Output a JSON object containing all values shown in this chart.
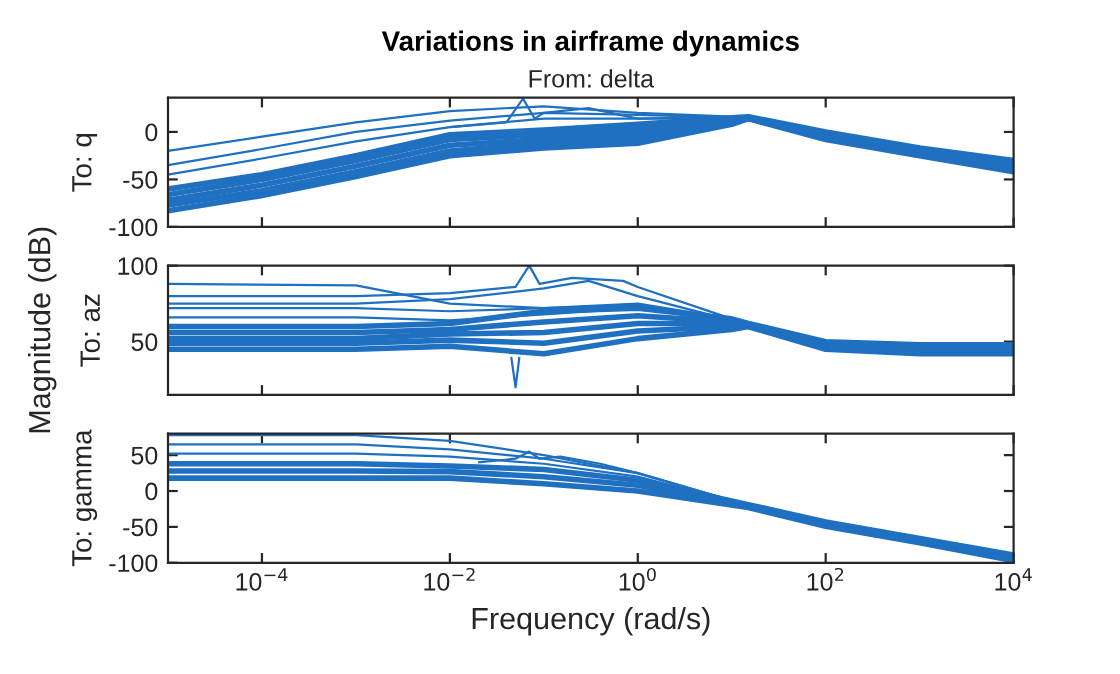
{
  "chart_data": [
    {
      "type": "line",
      "title": "Variations in airframe dynamics",
      "subtitle": "From: delta",
      "ylabel": "To: q",
      "log": "x",
      "grid": false,
      "tick_labels": "y",
      "xlim": [
        1e-05,
        10000
      ],
      "xticks": [
        {
          "value": 0.0001,
          "label": null
        },
        {
          "value": 0.01,
          "label": null
        },
        {
          "value": 1,
          "label": null
        },
        {
          "value": 100,
          "label": null
        },
        {
          "value": 10000,
          "label": null
        }
      ],
      "ylim": [
        -100,
        36
      ],
      "yticks": [
        -100,
        -50,
        0
      ],
      "series": [
        {
          "color": "#1f70c1",
          "x": [
            1e-05,
            0.0001,
            0.001,
            0.01,
            0.1,
            1,
            10,
            15,
            100,
            1000,
            10000
          ],
          "values": [
            -83,
            -67,
            -47,
            -25,
            -17,
            -12,
            8,
            14,
            -8,
            -25,
            -42
          ]
        },
        {
          "color": "#1f70c1",
          "x": [
            1e-05,
            0.0001,
            0.001,
            0.01,
            0.1,
            1,
            10,
            15,
            100,
            1000,
            10000
          ],
          "values": [
            -77,
            -62,
            -42,
            -20,
            -12,
            -7,
            10,
            14,
            -6,
            -23,
            -39
          ]
        },
        {
          "color": "#1f70c1",
          "x": [
            1e-05,
            0.0001,
            0.001,
            0.01,
            0.1,
            1,
            10,
            15,
            100,
            1000,
            10000
          ],
          "values": [
            -72,
            -56,
            -36,
            -14,
            -8,
            -2,
            12,
            15,
            -4,
            -21,
            -36
          ]
        },
        {
          "color": "#1f70c1",
          "x": [
            1e-05,
            0.0001,
            0.001,
            0.01,
            0.1,
            1,
            10,
            15,
            100,
            1000,
            10000
          ],
          "values": [
            -66,
            -50,
            -30,
            -8,
            -3,
            3,
            13,
            15,
            -2,
            -19,
            -33
          ]
        },
        {
          "color": "#1f70c1",
          "x": [
            1e-05,
            0.0001,
            0.001,
            0.01,
            0.1,
            1,
            10,
            15,
            100,
            1000,
            10000
          ],
          "values": [
            -60,
            -45,
            -25,
            -3,
            2,
            8,
            15,
            16,
            0,
            -17,
            -30
          ]
        },
        {
          "color": "#1f70c1",
          "x": [
            1e-05,
            0.0001,
            0.001,
            0.01,
            0.1,
            1,
            10,
            15
          ],
          "values": [
            -20,
            -5,
            10,
            22,
            27,
            20,
            16,
            15
          ]
        },
        {
          "color": "#1f70c1",
          "x": [
            1e-05,
            0.0001,
            0.001,
            0.01,
            0.1,
            1,
            10,
            15
          ],
          "values": [
            -35,
            -18,
            0,
            12,
            20,
            18,
            15,
            15
          ]
        },
        {
          "color": "#1f70c1",
          "x": [
            1e-05,
            0.0001,
            0.001,
            0.01,
            0.1,
            1,
            10,
            15
          ],
          "values": [
            -45,
            -28,
            -10,
            5,
            14,
            14,
            15,
            15
          ]
        },
        {
          "color": "#1f70c1",
          "x": [
            0.01,
            0.04,
            0.06,
            0.08,
            0.1,
            0.3,
            1,
            15
          ],
          "values": [
            5,
            10,
            35,
            14,
            20,
            25,
            14,
            15
          ]
        }
      ]
    },
    {
      "type": "line",
      "ylabel": "To: az",
      "annotations": [
        "Magnitude (dB)"
      ],
      "log": "x",
      "grid": false,
      "tick_labels": "y",
      "xlim": [
        1e-05,
        10000
      ],
      "xticks": [
        {
          "value": 0.0001,
          "label": null
        },
        {
          "value": 0.01,
          "label": null
        },
        {
          "value": 1,
          "label": null
        },
        {
          "value": 100,
          "label": null
        },
        {
          "value": 10000,
          "label": null
        }
      ],
      "ylim": [
        15,
        100
      ],
      "yticks": [
        50,
        100
      ],
      "series": [
        {
          "color": "#1f70c1",
          "x": [
            1e-05,
            0.001,
            0.01,
            0.1,
            1,
            10,
            15,
            100,
            1000,
            10000
          ],
          "values": [
            45,
            45,
            47,
            42,
            52,
            58,
            60,
            45,
            42,
            42
          ]
        },
        {
          "color": "#1f70c1",
          "x": [
            1e-05,
            0.001,
            0.01,
            0.1,
            1,
            10,
            15,
            100,
            1000,
            10000
          ],
          "values": [
            49,
            49,
            51,
            49,
            57,
            60,
            60,
            46,
            44,
            44
          ]
        },
        {
          "color": "#1f70c1",
          "x": [
            1e-05,
            0.001,
            0.01,
            0.1,
            1,
            10,
            15,
            100,
            1000,
            10000
          ],
          "values": [
            52,
            52,
            55,
            56,
            62,
            62,
            61,
            48,
            45,
            45
          ]
        },
        {
          "color": "#1f70c1",
          "x": [
            1e-05,
            0.001,
            0.01,
            0.1,
            1,
            10,
            15,
            100,
            1000,
            10000
          ],
          "values": [
            56,
            56,
            58,
            63,
            67,
            63,
            61,
            49,
            46,
            46
          ]
        },
        {
          "color": "#1f70c1",
          "x": [
            1e-05,
            0.001,
            0.01,
            0.1,
            1,
            10,
            15,
            100,
            1000,
            10000
          ],
          "values": [
            60,
            60,
            62,
            70,
            72,
            65,
            62,
            50,
            48,
            48
          ]
        },
        {
          "color": "#1f70c1",
          "x": [
            0.045,
            0.05,
            0.055
          ],
          "values": [
            40,
            20,
            40
          ]
        },
        {
          "color": "#1f70c1",
          "x": [
            1e-05,
            0.001,
            0.01,
            0.1,
            1,
            10
          ],
          "values": [
            88,
            87,
            75,
            72,
            75,
            65
          ]
        },
        {
          "color": "#1f70c1",
          "x": [
            1e-05,
            0.001,
            0.01,
            0.05,
            0.07,
            0.09,
            0.2,
            0.7,
            1,
            10
          ],
          "values": [
            80,
            80,
            82,
            86,
            100,
            88,
            92,
            90,
            86,
            65
          ]
        },
        {
          "color": "#1f70c1",
          "x": [
            1e-05,
            0.001,
            0.01,
            0.1,
            0.3,
            1,
            10
          ],
          "values": [
            75,
            75,
            78,
            85,
            90,
            80,
            64
          ]
        },
        {
          "color": "#1f70c1",
          "x": [
            1e-05,
            0.001,
            0.01,
            0.1,
            1,
            10
          ],
          "values": [
            72,
            72,
            70,
            72,
            74,
            63
          ]
        },
        {
          "color": "#1f70c1",
          "x": [
            1e-05,
            0.001,
            0.01,
            0.1,
            1,
            10
          ],
          "values": [
            66,
            66,
            64,
            68,
            72,
            63
          ]
        }
      ]
    },
    {
      "type": "line",
      "ylabel": "To: gamma",
      "xlabel": "Frequency (rad/s)",
      "log": "x",
      "grid": false,
      "xlim": [
        1e-05,
        10000
      ],
      "xticks": [
        {
          "value": 0.0001,
          "label": "10$^{−4}$"
        },
        {
          "value": 0.01,
          "label": "10$^{−2}$"
        },
        {
          "value": 1,
          "label": "10$^{0}$"
        },
        {
          "value": 100,
          "label": "10$^{2}$"
        },
        {
          "value": 10000,
          "label": "10$^{4}$"
        }
      ],
      "ylim": [
        -100,
        80
      ],
      "yticks": [
        -100,
        -50,
        0,
        50
      ],
      "series": [
        {
          "color": "#1f70c1",
          "x": [
            1e-05,
            0.001,
            0.01,
            0.1,
            1,
            15,
            100,
            1000,
            10000
          ],
          "values": [
            18,
            18,
            18,
            10,
            0,
            -23,
            -49,
            -72,
            -97
          ]
        },
        {
          "color": "#1f70c1",
          "x": [
            1e-05,
            0.001,
            0.01,
            0.1,
            1,
            15,
            100,
            1000,
            10000
          ],
          "values": [
            28,
            28,
            27,
            20,
            8,
            -21,
            -46,
            -69,
            -93
          ]
        },
        {
          "color": "#1f70c1",
          "x": [
            1e-05,
            0.001,
            0.01,
            0.1,
            1,
            15,
            100,
            1000,
            10000
          ],
          "values": [
            38,
            38,
            35,
            30,
            15,
            -19,
            -43,
            -66,
            -89
          ]
        },
        {
          "color": "#1f70c1",
          "x": [
            1e-05,
            0.001,
            0.01,
            0.1,
            1,
            15
          ],
          "values": [
            78,
            78,
            70,
            50,
            25,
            -20
          ]
        },
        {
          "color": "#1f70c1",
          "x": [
            1e-05,
            0.001,
            0.01,
            0.1,
            1,
            15
          ],
          "values": [
            65,
            65,
            58,
            45,
            25,
            -20
          ]
        },
        {
          "color": "#1f70c1",
          "x": [
            1e-05,
            0.001,
            0.01,
            0.1,
            1,
            15
          ],
          "values": [
            52,
            52,
            48,
            38,
            20,
            -20
          ]
        },
        {
          "color": "#1f70c1",
          "x": [
            0.02,
            0.05,
            0.07,
            0.09,
            0.15,
            0.4,
            1
          ],
          "values": [
            40,
            45,
            55,
            45,
            48,
            38,
            25
          ]
        }
      ]
    }
  ]
}
